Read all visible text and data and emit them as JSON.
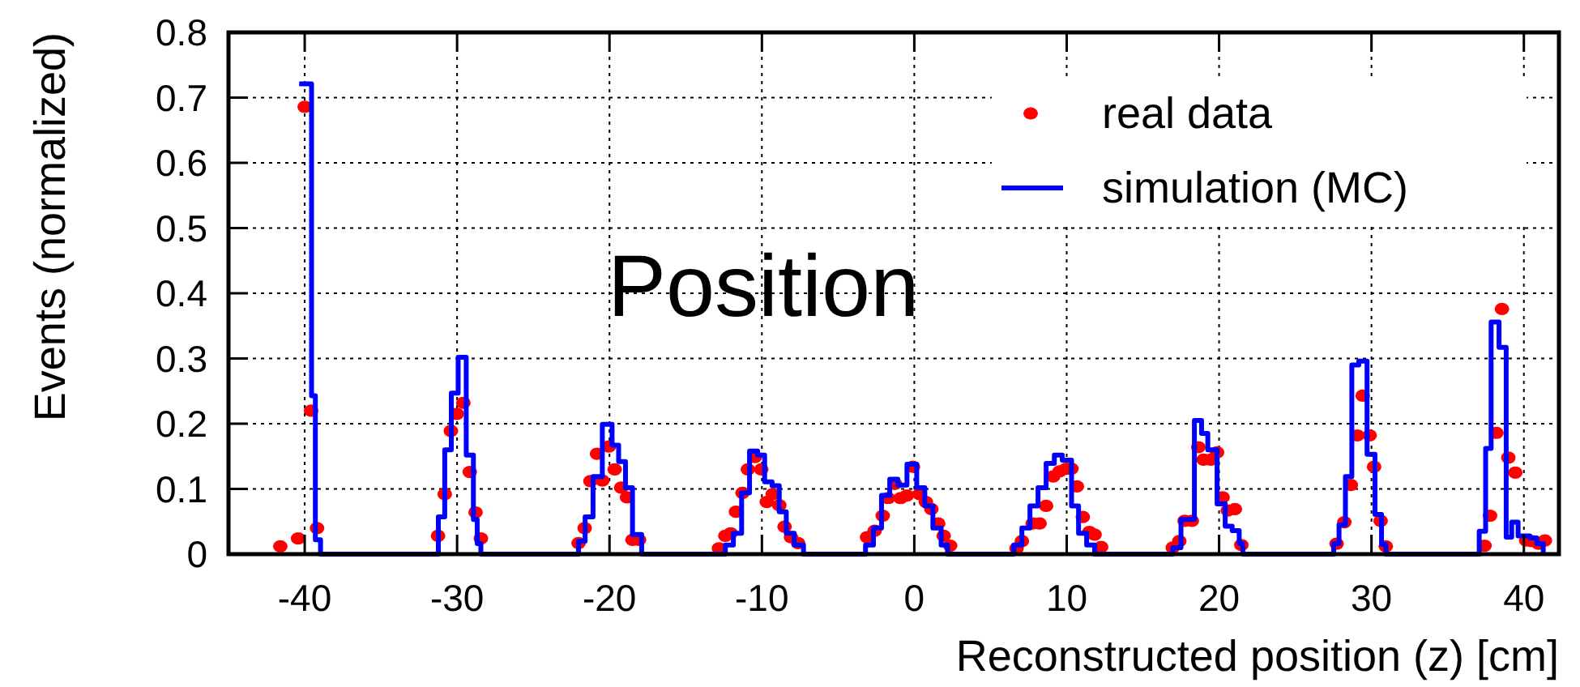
{
  "chart_data": {
    "type": "step",
    "title": "Position",
    "xlabel": "Reconstructed position (z) [cm]",
    "ylabel": "Events (normalized)",
    "xlim": [
      -45,
      42.3
    ],
    "ylim": [
      0,
      0.8
    ],
    "xticks": [
      -40,
      -30,
      -20,
      -10,
      0,
      10,
      20,
      30,
      40
    ],
    "yticks": [
      0,
      0.1,
      0.2,
      0.3,
      0.4,
      0.5,
      0.6,
      0.7,
      0.8
    ],
    "grid": true,
    "legend": "top right",
    "series": [
      {
        "name": "real data",
        "type": "scatter",
        "marker": "circle",
        "color": "#ff0000",
        "x": [
          -41.6,
          -40.43,
          -40,
          -39.58,
          -39.19,
          -31.25,
          -30.81,
          -30.41,
          -30.02,
          -29.59,
          -29.17,
          -28.79,
          -28.44,
          -22.03,
          -21.63,
          -21.25,
          -20.82,
          -20.47,
          -20.04,
          -19.66,
          -19.23,
          -18.85,
          -18.49,
          -18.06,
          -12.82,
          -12.4,
          -12.05,
          -11.7,
          -11.27,
          -10.92,
          -10.46,
          -10.04,
          -9.68,
          -9.29,
          -8.86,
          -8.51,
          -8.09,
          -7.62,
          -3.1,
          -2.6,
          -2.07,
          -1.72,
          -1.26,
          -0.9,
          -0.48,
          -0.09,
          0.34,
          0.76,
          1.12,
          1.57,
          1.93,
          2.35,
          6.71,
          7.06,
          7.77,
          8.22,
          8.65,
          9.11,
          9.53,
          9.96,
          10.31,
          10.67,
          11.06,
          11.49,
          11.83,
          12.26,
          16.96,
          17.39,
          17.74,
          18.21,
          18.64,
          18.98,
          19.45,
          19.87,
          20.23,
          20.57,
          21.04,
          21.46,
          27.71,
          28.22,
          28.64,
          29.07,
          29.42,
          29.88,
          30.17,
          30.6,
          30.94,
          37.42,
          37.78,
          38.2,
          38.56,
          38.98,
          39.44,
          40.15,
          40.5,
          40.96,
          41.38
        ],
        "values": [
          0.012,
          0.024,
          0.686,
          0.22,
          0.04,
          0.028,
          0.092,
          0.189,
          0.215,
          0.232,
          0.126,
          0.064,
          0.024,
          0.017,
          0.04,
          0.112,
          0.154,
          0.113,
          0.165,
          0.13,
          0.102,
          0.087,
          0.022,
          0.022,
          0.009,
          0.028,
          0.032,
          0.065,
          0.094,
          0.13,
          0.149,
          0.13,
          0.08,
          0.092,
          0.075,
          0.042,
          0.026,
          0.017,
          0.026,
          0.036,
          0.059,
          0.086,
          0.108,
          0.086,
          0.09,
          0.134,
          0.092,
          0.08,
          0.069,
          0.047,
          0.028,
          0.013,
          0.009,
          0.02,
          0.047,
          0.047,
          0.074,
          0.119,
          0.127,
          0.131,
          0.131,
          0.104,
          0.057,
          0.034,
          0.03,
          0.011,
          0.01,
          0.02,
          0.051,
          0.051,
          0.164,
          0.145,
          0.145,
          0.156,
          0.087,
          0.067,
          0.069,
          0.014,
          0.016,
          0.049,
          0.106,
          0.182,
          0.243,
          0.182,
          0.134,
          0.051,
          0.012,
          0.013,
          0.059,
          0.186,
          0.376,
          0.148,
          0.125,
          0.021,
          0.02,
          0.016,
          0.021
        ]
      },
      {
        "name": "simulation (MC)",
        "line_style": "solid",
        "color": "#0000ff",
        "x": [
          -40.36,
          -39.55,
          -39.3,
          -38.96,
          -31.23,
          -30.81,
          -30.38,
          -29.93,
          -29.4,
          -28.93,
          -28.68,
          -28.44,
          -22.03,
          -21.6,
          -21.08,
          -20.47,
          -19.83,
          -19.4,
          -18.95,
          -18.49,
          -17.89,
          -12.4,
          -11.87,
          -11.33,
          -10.81,
          -10.28,
          -9.82,
          -9.33,
          -8.86,
          -8.4,
          -7.88,
          -7.27,
          -3.2,
          -2.68,
          -2.15,
          -1.61,
          -1.08,
          -0.48,
          0.16,
          0.69,
          1.22,
          1.76,
          2.18,
          6.53,
          7.06,
          7.59,
          8.12,
          8.65,
          9.19,
          9.71,
          10.32,
          10.78,
          11.31,
          11.83,
          16.96,
          17.5,
          18.38,
          18.85,
          19.26,
          19.87,
          20.4,
          20.86,
          21.32,
          21.56,
          27.52,
          27.87,
          28.29,
          28.71,
          29.17,
          29.71,
          30.23,
          30.66,
          30.94,
          37.07,
          37.49,
          37.85,
          38.37,
          38.84,
          39.2,
          39.62,
          40.39,
          40.85,
          41.27
        ],
        "values": [
          0.721,
          0.243,
          0.022,
          0,
          0.057,
          0.16,
          0.247,
          0.302,
          0.152,
          0.053,
          0.016,
          0,
          0.02,
          0.057,
          0.119,
          0.199,
          0.167,
          0.142,
          0.102,
          0.03,
          0,
          0.014,
          0.032,
          0.094,
          0.158,
          0.152,
          0.111,
          0.105,
          0.065,
          0.032,
          0.014,
          0,
          0.014,
          0.04,
          0.09,
          0.115,
          0.106,
          0.138,
          0.102,
          0.074,
          0.04,
          0.014,
          0,
          0.014,
          0.04,
          0.074,
          0.102,
          0.139,
          0.152,
          0.144,
          0.074,
          0.032,
          0.014,
          0,
          0.01,
          0.053,
          0.205,
          0.185,
          0.16,
          0.077,
          0.043,
          0.036,
          0.016,
          0,
          0.016,
          0.045,
          0.119,
          0.29,
          0.296,
          0.153,
          0.061,
          0.015,
          0,
          0.035,
          0.162,
          0.356,
          0.317,
          0.026,
          0.049,
          0.028,
          0.025,
          0.016,
          0
        ]
      }
    ]
  }
}
